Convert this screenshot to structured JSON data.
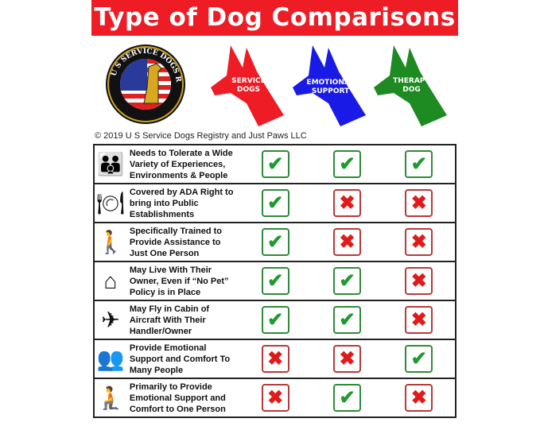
{
  "title": "Type of Dog Comparisons",
  "seal": {
    "text": "U S SERVICE DOGS REGISTRY"
  },
  "dogs": [
    {
      "line1": "SERVICE",
      "line2": "DOGS",
      "color": "#ee1c25"
    },
    {
      "line1": "EMOTIONAL",
      "line2": "SUPPORT",
      "color": "#1a1ae6"
    },
    {
      "line1": "THERAPY",
      "line2": "DOG",
      "color": "#1e8a22"
    }
  ],
  "copyright": "© 2019 U S Service Dogs Registry and Just Paws LLC",
  "colors": {
    "check": "#1f9a30",
    "cross": "#e01b1b"
  },
  "rows": [
    {
      "icon": "family-with-dog-icon",
      "glyph": "👪",
      "label": "Needs to Tolerate a Wide Variety of Experiences, Environments & People",
      "values": [
        true,
        true,
        true
      ]
    },
    {
      "icon": "plate-cutlery-icon",
      "glyph": "🍽",
      "label": "Covered by ADA Right to bring into Public Establishments",
      "values": [
        true,
        false,
        false
      ]
    },
    {
      "icon": "person-walking-dog-icon",
      "glyph": "🚶",
      "label": "Specifically Trained to Provide Assistance to Just One Person",
      "values": [
        true,
        false,
        false
      ]
    },
    {
      "icon": "house-icon",
      "glyph": "⌂",
      "label": "May Live With Their Owner, Even if “No Pet” Policy is in Place",
      "values": [
        true,
        true,
        false
      ]
    },
    {
      "icon": "airplane-icon",
      "glyph": "✈",
      "label": "May Fly in Cabin of Aircraft With Their Handler/Owner",
      "values": [
        true,
        true,
        false
      ]
    },
    {
      "icon": "two-people-icon",
      "glyph": "👥",
      "label": "Provide Emotional Support and Comfort To Many People",
      "values": [
        false,
        false,
        true
      ]
    },
    {
      "icon": "person-hugging-dog-icon",
      "glyph": "🧎",
      "label": "Primarily to Provide Emotional Support and Comfort to One Person",
      "values": [
        false,
        true,
        false
      ]
    }
  ]
}
